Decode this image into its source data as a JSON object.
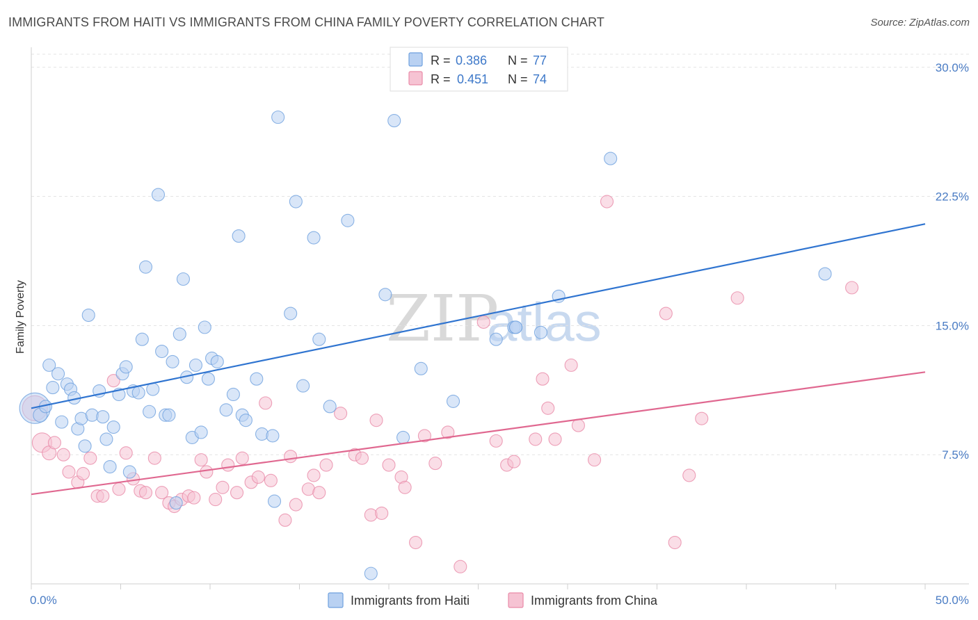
{
  "title": "IMMIGRANTS FROM HAITI VS IMMIGRANTS FROM CHINA FAMILY POVERTY CORRELATION CHART",
  "source": "Source: ZipAtlas.com",
  "watermark": {
    "zip": "ZIP",
    "atlas": "atlas"
  },
  "colors": {
    "haiti": "#6fa1de",
    "haiti_fill": "#b9d1f2",
    "haiti_line": "#2f74d0",
    "china": "#e98aa8",
    "china_fill": "#f6c3d3",
    "china_line": "#e06890",
    "tick": "#4a7cc4",
    "grid": "#e3e3e3"
  },
  "legend": {
    "haiti": {
      "r_label": "R = ",
      "r_value": "0.386",
      "n_label": "N = ",
      "n_value": "77"
    },
    "china": {
      "r_label": "R = ",
      "r_value": "0.451",
      "n_label": "N = ",
      "n_value": "74"
    }
  },
  "bottom_legend": {
    "haiti": "Immigrants from Haiti",
    "china": "Immigrants from China"
  },
  "chart_data": {
    "type": "scatter",
    "title": "IMMIGRANTS FROM HAITI VS IMMIGRANTS FROM CHINA FAMILY POVERTY CORRELATION CHART",
    "xlabel": "",
    "ylabel": "Family Poverty",
    "xlim": [
      0,
      50
    ],
    "ylim": [
      0,
      31
    ],
    "x_tick_labels": [
      "0.0%",
      "50.0%"
    ],
    "y_ticks": [
      7.5,
      15.0,
      22.5,
      30.0
    ],
    "y_tick_labels": [
      "7.5%",
      "15.0%",
      "22.5%",
      "30.0%"
    ],
    "series": [
      {
        "name": "Immigrants from Haiti",
        "r": 0.386,
        "n": 77,
        "trend": {
          "x": [
            0,
            50
          ],
          "y": [
            10.2,
            20.9
          ]
        },
        "points": [
          [
            0.2,
            10.2,
            22
          ],
          [
            0.5,
            9.8,
            10
          ],
          [
            0.8,
            10.3,
            9
          ],
          [
            1.0,
            12.7,
            9
          ],
          [
            1.2,
            11.4,
            9
          ],
          [
            1.5,
            12.2,
            9
          ],
          [
            1.7,
            9.4,
            9
          ],
          [
            2.0,
            11.6,
            9
          ],
          [
            2.2,
            11.3,
            9
          ],
          [
            2.4,
            10.8,
            9
          ],
          [
            2.6,
            9.0,
            9
          ],
          [
            2.8,
            9.6,
            9
          ],
          [
            3.0,
            8.0,
            9
          ],
          [
            3.2,
            15.6,
            9
          ],
          [
            3.4,
            9.8,
            9
          ],
          [
            3.8,
            11.2,
            9
          ],
          [
            4.0,
            9.7,
            9
          ],
          [
            4.2,
            8.4,
            9
          ],
          [
            4.4,
            6.8,
            9
          ],
          [
            4.6,
            9.1,
            9
          ],
          [
            4.9,
            11.0,
            9
          ],
          [
            5.1,
            12.2,
            9
          ],
          [
            5.3,
            12.6,
            9
          ],
          [
            5.5,
            6.5,
            9
          ],
          [
            5.7,
            11.2,
            9
          ],
          [
            6.0,
            11.1,
            9
          ],
          [
            6.2,
            14.2,
            9
          ],
          [
            6.4,
            18.4,
            9
          ],
          [
            6.6,
            10.0,
            9
          ],
          [
            6.8,
            11.3,
            9
          ],
          [
            7.1,
            22.6,
            9
          ],
          [
            7.3,
            13.5,
            9
          ],
          [
            7.5,
            9.8,
            9
          ],
          [
            7.7,
            9.8,
            9
          ],
          [
            7.9,
            12.9,
            9
          ],
          [
            8.1,
            4.7,
            9
          ],
          [
            8.3,
            14.5,
            9
          ],
          [
            8.5,
            17.7,
            9
          ],
          [
            8.7,
            12.0,
            9
          ],
          [
            9.0,
            8.5,
            9
          ],
          [
            9.2,
            12.7,
            9
          ],
          [
            9.5,
            8.8,
            9
          ],
          [
            9.7,
            14.9,
            9
          ],
          [
            9.9,
            11.9,
            9
          ],
          [
            10.1,
            13.1,
            9
          ],
          [
            10.4,
            12.9,
            9
          ],
          [
            10.9,
            10.1,
            9
          ],
          [
            11.3,
            11.0,
            9
          ],
          [
            11.6,
            20.2,
            9
          ],
          [
            11.8,
            9.8,
            9
          ],
          [
            12.0,
            9.5,
            9
          ],
          [
            12.6,
            11.9,
            9
          ],
          [
            12.9,
            8.7,
            9
          ],
          [
            13.5,
            8.6,
            9
          ],
          [
            13.6,
            4.8,
            9
          ],
          [
            13.8,
            27.1,
            9
          ],
          [
            14.5,
            15.7,
            9
          ],
          [
            14.8,
            22.2,
            9
          ],
          [
            15.2,
            11.5,
            9
          ],
          [
            15.8,
            20.1,
            9
          ],
          [
            16.1,
            14.2,
            9
          ],
          [
            16.7,
            10.3,
            9
          ],
          [
            17.7,
            21.1,
            9
          ],
          [
            19.0,
            0.6,
            9
          ],
          [
            19.8,
            16.8,
            9
          ],
          [
            20.3,
            26.9,
            9
          ],
          [
            20.8,
            8.5,
            9
          ],
          [
            21.8,
            12.5,
            9
          ],
          [
            23.6,
            10.6,
            9
          ],
          [
            26.0,
            14.2,
            9
          ],
          [
            27.0,
            14.9,
            9
          ],
          [
            27.1,
            14.9,
            9
          ],
          [
            28.5,
            14.6,
            9
          ],
          [
            29.5,
            16.7,
            9
          ],
          [
            32.4,
            24.7,
            9
          ],
          [
            44.4,
            18.0,
            9
          ],
          [
            27.1,
            14.9,
            9
          ]
        ]
      },
      {
        "name": "Immigrants from China",
        "r": 0.451,
        "n": 74,
        "trend": {
          "x": [
            0,
            50
          ],
          "y": [
            5.2,
            12.3
          ]
        },
        "points": [
          [
            0.2,
            10.2,
            18
          ],
          [
            0.6,
            8.2,
            14
          ],
          [
            1.0,
            7.6,
            10
          ],
          [
            1.3,
            8.2,
            9
          ],
          [
            1.8,
            7.5,
            9
          ],
          [
            2.1,
            6.5,
            9
          ],
          [
            2.6,
            5.9,
            9
          ],
          [
            2.9,
            6.4,
            9
          ],
          [
            3.3,
            7.3,
            9
          ],
          [
            3.7,
            5.1,
            9
          ],
          [
            4.0,
            5.1,
            9
          ],
          [
            4.6,
            11.8,
            9
          ],
          [
            4.9,
            5.5,
            9
          ],
          [
            5.3,
            7.6,
            9
          ],
          [
            5.7,
            6.1,
            9
          ],
          [
            6.1,
            5.4,
            9
          ],
          [
            6.4,
            5.3,
            9
          ],
          [
            6.9,
            7.3,
            9
          ],
          [
            7.3,
            5.3,
            9
          ],
          [
            7.7,
            4.7,
            9
          ],
          [
            8.0,
            4.5,
            9
          ],
          [
            8.4,
            4.9,
            9
          ],
          [
            8.8,
            5.1,
            9
          ],
          [
            9.1,
            5.0,
            9
          ],
          [
            9.5,
            7.2,
            9
          ],
          [
            9.8,
            6.5,
            9
          ],
          [
            10.3,
            4.9,
            9
          ],
          [
            10.7,
            5.6,
            9
          ],
          [
            11.0,
            6.9,
            9
          ],
          [
            11.5,
            5.3,
            9
          ],
          [
            11.8,
            7.3,
            9
          ],
          [
            12.3,
            5.9,
            9
          ],
          [
            12.7,
            6.2,
            9
          ],
          [
            13.1,
            10.5,
            9
          ],
          [
            13.4,
            6.0,
            9
          ],
          [
            14.2,
            3.7,
            9
          ],
          [
            14.5,
            7.4,
            9
          ],
          [
            14.8,
            4.6,
            9
          ],
          [
            15.5,
            5.5,
            9
          ],
          [
            15.8,
            6.3,
            9
          ],
          [
            16.1,
            5.3,
            9
          ],
          [
            16.5,
            6.9,
            9
          ],
          [
            17.3,
            9.9,
            9
          ],
          [
            18.1,
            7.5,
            9
          ],
          [
            18.5,
            7.3,
            9
          ],
          [
            19.0,
            4.0,
            9
          ],
          [
            19.3,
            9.5,
            9
          ],
          [
            19.6,
            4.1,
            9
          ],
          [
            20.0,
            6.9,
            9
          ],
          [
            20.7,
            6.2,
            9
          ],
          [
            20.9,
            5.6,
            9
          ],
          [
            21.5,
            2.4,
            9
          ],
          [
            22.0,
            8.6,
            9
          ],
          [
            22.6,
            7.0,
            9
          ],
          [
            23.3,
            8.8,
            9
          ],
          [
            24.0,
            1.0,
            9
          ],
          [
            25.3,
            15.2,
            9
          ],
          [
            26.0,
            8.3,
            9
          ],
          [
            26.6,
            6.9,
            9
          ],
          [
            27.0,
            7.1,
            9
          ],
          [
            28.2,
            8.4,
            9
          ],
          [
            28.6,
            11.9,
            9
          ],
          [
            28.9,
            10.2,
            9
          ],
          [
            29.3,
            8.4,
            9
          ],
          [
            30.2,
            12.7,
            9
          ],
          [
            30.6,
            9.2,
            9
          ],
          [
            31.5,
            7.2,
            9
          ],
          [
            32.2,
            22.2,
            9
          ],
          [
            35.5,
            15.7,
            9
          ],
          [
            36.0,
            2.4,
            9
          ],
          [
            36.8,
            6.3,
            9
          ],
          [
            37.5,
            9.6,
            9
          ],
          [
            39.5,
            16.6,
            9
          ],
          [
            45.9,
            17.2,
            9
          ]
        ]
      }
    ]
  }
}
